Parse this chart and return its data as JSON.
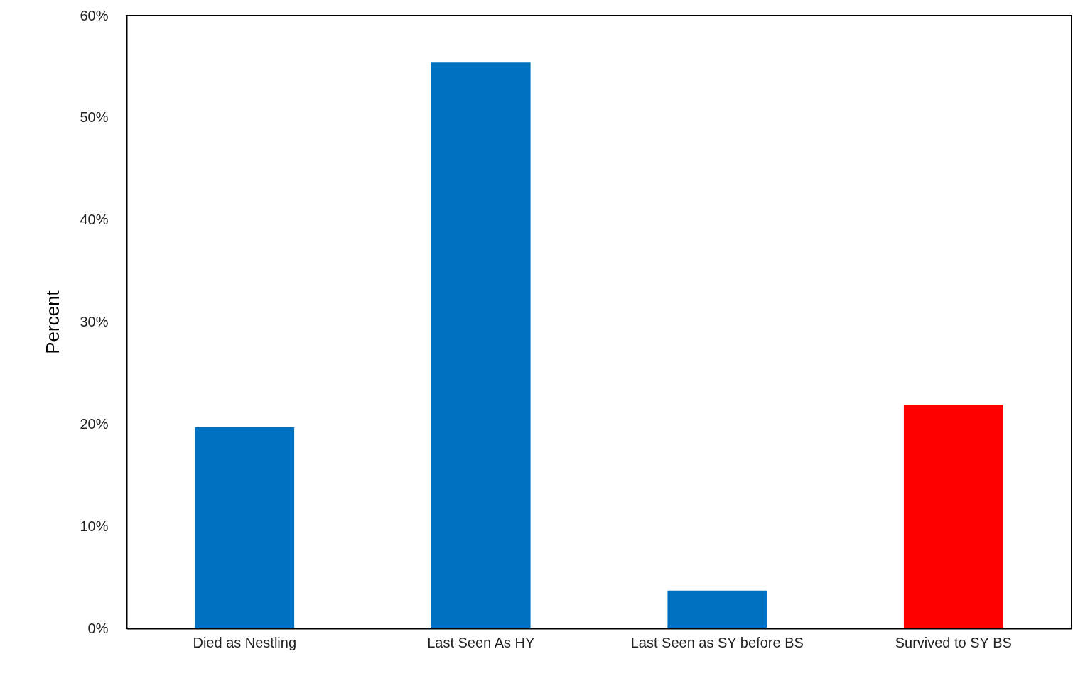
{
  "chart_data": {
    "type": "bar",
    "ylabel": "Percent",
    "categories": [
      "Died as Nestling",
      "Last Seen As HY",
      "Last Seen as SY  before BS",
      "Survived to SY BS"
    ],
    "values": [
      19.7,
      55.4,
      3.7,
      21.9
    ],
    "colors": [
      "#0070c0",
      "#0070c0",
      "#0070c0",
      "#ff0000"
    ],
    "ylim": [
      0,
      60
    ],
    "yticks": [
      {
        "value": 0,
        "label": "0%"
      },
      {
        "value": 10,
        "label": "10%"
      },
      {
        "value": 20,
        "label": "20%"
      },
      {
        "value": 30,
        "label": "30%"
      },
      {
        "value": 40,
        "label": "40%"
      },
      {
        "value": 50,
        "label": "50%"
      },
      {
        "value": 60,
        "label": "60%"
      }
    ],
    "grid": false
  }
}
